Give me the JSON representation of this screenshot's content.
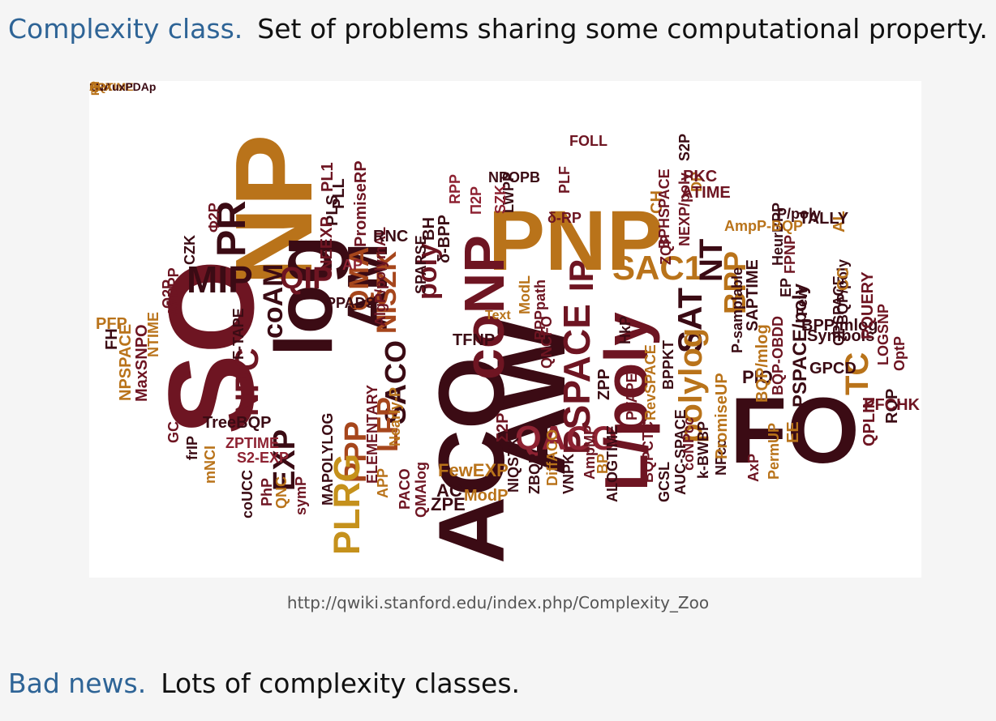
{
  "heading": {
    "term": "Complexity class.",
    "definition": "Set of problems sharing some computational property."
  },
  "word_cloud": {
    "source_url": "http://qwiki.stanford.edu/index.php/Complexity_Zoo",
    "colors": {
      "dark": "#3b0b14",
      "maroon": "#6e1522",
      "red": "#8e2232",
      "rust": "#a6461c",
      "orange": "#b9731a",
      "gold": "#c5911c"
    },
    "words": [
      {
        "t": "SO",
        "c": "maroon",
        "v": 1
      },
      {
        "t": "NP",
        "c": "orange",
        "v": 1
      },
      {
        "t": "log",
        "c": "dark",
        "v": 1
      },
      {
        "t": "PNP",
        "c": "orange",
        "v": 0
      },
      {
        "t": "AW",
        "c": "dark",
        "v": 1
      },
      {
        "t": "ACO",
        "c": "dark",
        "v": 1
      },
      {
        "t": "FO",
        "c": "dark",
        "v": 0
      },
      {
        "t": "L/poly",
        "c": "maroon",
        "v": 1
      },
      {
        "t": "coNP",
        "c": "maroon",
        "v": 1
      },
      {
        "t": "AM",
        "c": "dark",
        "v": 1
      },
      {
        "t": "MIP",
        "c": "dark",
        "v": 0
      },
      {
        "t": "PR",
        "c": "dark",
        "v": 1
      },
      {
        "t": "QIP",
        "c": "maroon",
        "v": 0
      },
      {
        "t": "coAM",
        "c": "dark",
        "v": 1
      },
      {
        "t": "QMA",
        "c": "rust",
        "v": 1
      },
      {
        "t": "NISZK",
        "c": "rust",
        "v": 1
      },
      {
        "t": "poly",
        "c": "maroon",
        "v": 1
      },
      {
        "t": "SACO",
        "c": "dark",
        "v": 1
      },
      {
        "t": "LFP",
        "c": "rust",
        "v": 1
      },
      {
        "t": "PPP",
        "c": "rust",
        "v": 1
      },
      {
        "t": "PLRG",
        "c": "gold",
        "v": 1
      },
      {
        "t": "EXP",
        "c": "dark",
        "v": 1
      },
      {
        "t": "NPC",
        "c": "maroon",
        "v": 1
      },
      {
        "t": "PSPACE",
        "c": "maroon",
        "v": 1
      },
      {
        "t": "IP",
        "c": "maroon",
        "v": 1
      },
      {
        "t": "SAC1",
        "c": "orange",
        "v": 0
      },
      {
        "t": "SAT",
        "c": "dark",
        "v": 1
      },
      {
        "t": "NT",
        "c": "dark",
        "v": 1
      },
      {
        "t": "polylog",
        "c": "orange",
        "v": 1
      },
      {
        "t": "BPP",
        "c": "orange",
        "v": 1
      },
      {
        "t": "QACO",
        "c": "red",
        "v": 0
      },
      {
        "t": "TC",
        "c": "orange",
        "v": 1
      },
      {
        "t": "PSPACE/poly",
        "c": "dark",
        "v": 1
      },
      {
        "t": "NPSPACE",
        "c": "orange",
        "v": 1
      },
      {
        "t": "MaxSNPO",
        "c": "maroon",
        "v": 1
      },
      {
        "t": "NTIME",
        "c": "orange",
        "v": 1
      },
      {
        "t": "PFP",
        "c": "orange",
        "v": 0
      },
      {
        "t": "FH",
        "c": "dark",
        "v": 1
      },
      {
        "t": "Θ2P",
        "c": "maroon",
        "v": 1
      },
      {
        "t": "AVBPP",
        "c": "maroon",
        "v": 1
      },
      {
        "t": "CZK",
        "c": "dark",
        "v": 1
      },
      {
        "t": "Φ2P",
        "c": "maroon",
        "v": 1
      },
      {
        "t": "F-TAPE",
        "c": "dark",
        "v": 1
      },
      {
        "t": "TreeBQP",
        "c": "dark",
        "v": 0
      },
      {
        "t": "GC",
        "c": "maroon",
        "v": 1
      },
      {
        "t": "frIP",
        "c": "dark",
        "v": 1
      },
      {
        "t": "mNCI",
        "c": "orange",
        "v": 1
      },
      {
        "t": "ZPTIME",
        "c": "red",
        "v": 0
      },
      {
        "t": "S2-EXP",
        "c": "red",
        "v": 0
      },
      {
        "t": "coUCC",
        "c": "dark",
        "v": 1
      },
      {
        "t": "PhP",
        "c": "maroon",
        "v": 1
      },
      {
        "t": "QNC",
        "c": "orange",
        "v": 1
      },
      {
        "t": "symP",
        "c": "maroon",
        "v": 1
      },
      {
        "t": "MAPOLYLOG",
        "c": "dark",
        "v": 1
      },
      {
        "t": "ELEMENTARY",
        "c": "maroon",
        "v": 1
      },
      {
        "t": "Nearly-P",
        "c": "orange",
        "v": 1
      },
      {
        "t": "APP",
        "c": "orange",
        "v": 1
      },
      {
        "t": "PACO",
        "c": "maroon",
        "v": 1
      },
      {
        "t": "QMAlog",
        "c": "maroon",
        "v": 1
      },
      {
        "t": "FewEXP",
        "c": "orange",
        "v": 0
      },
      {
        "t": "AC",
        "c": "dark",
        "v": 0
      },
      {
        "t": "ZPE",
        "c": "dark",
        "v": 0
      },
      {
        "t": "ModP",
        "c": "orange",
        "v": 0
      },
      {
        "t": "Σ2P",
        "c": "maroon",
        "v": 1
      },
      {
        "t": "NIQSZK",
        "c": "dark",
        "v": 1
      },
      {
        "t": "ZBQP",
        "c": "dark",
        "v": 1
      },
      {
        "t": "DiffACO",
        "c": "orange",
        "v": 1
      },
      {
        "t": "VNPK",
        "c": "dark",
        "v": 1
      },
      {
        "t": "AmpMP",
        "c": "maroon",
        "v": 1
      },
      {
        "t": "BP",
        "c": "orange",
        "v": 1
      },
      {
        "t": "ALOGTIME",
        "c": "dark",
        "v": 1
      },
      {
        "t": "ZPP",
        "c": "dark",
        "v": 1
      },
      {
        "t": "PTAPE",
        "c": "maroon",
        "v": 1
      },
      {
        "t": "HkP",
        "c": "dark",
        "v": 1
      },
      {
        "t": "TFNP",
        "c": "dark",
        "v": 0
      },
      {
        "t": "QNCFO",
        "c": "maroon",
        "v": 1
      },
      {
        "t": "ModL",
        "c": "orange",
        "v": 1
      },
      {
        "t": "BPPpath",
        "c": "maroon",
        "v": 1
      },
      {
        "t": "Text",
        "c": "orange",
        "v": 0
      },
      {
        "t": "RevSPACE",
        "c": "orange",
        "v": 1
      },
      {
        "t": "BPPKT",
        "c": "dark",
        "v": 1
      },
      {
        "t": "BQPCTC",
        "c": "maroon",
        "v": 1
      },
      {
        "t": "GCSL",
        "c": "dark",
        "v": 1
      },
      {
        "t": "AUC-SPACE",
        "c": "dark",
        "v": 1
      },
      {
        "t": "coNPcc",
        "c": "maroon",
        "v": 1
      },
      {
        "t": "k-BWBP",
        "c": "dark",
        "v": 1
      },
      {
        "t": "NPcc",
        "c": "dark",
        "v": 1
      },
      {
        "t": "PromiseUP",
        "c": "orange",
        "v": 1
      },
      {
        "t": "P-samplable",
        "c": "dark",
        "v": 1
      },
      {
        "t": "AxP",
        "c": "maroon",
        "v": 1
      },
      {
        "t": "PermUP",
        "c": "orange",
        "v": 1
      },
      {
        "t": "EE",
        "c": "orange",
        "v": 1
      },
      {
        "t": "PIO",
        "c": "dark",
        "v": 0
      },
      {
        "t": "BQP/mlog",
        "c": "orange",
        "v": 1
      },
      {
        "t": "BQP-OBDD",
        "c": "maroon",
        "v": 1
      },
      {
        "t": "EP",
        "c": "dark",
        "v": 1
      },
      {
        "t": "Few",
        "c": "dark",
        "v": 1
      },
      {
        "t": "BPP/mlog",
        "c": "dark",
        "v": 0
      },
      {
        "t": "Symbols",
        "c": "dark",
        "v": 0
      },
      {
        "t": "GPCD",
        "c": "dark",
        "v": 0
      },
      {
        "t": "QPLIN",
        "c": "maroon",
        "v": 1
      },
      {
        "t": "RQP",
        "c": "dark",
        "v": 1
      },
      {
        "t": "PFCHK",
        "c": "maroon",
        "v": 0
      },
      {
        "t": "OptP",
        "c": "maroon",
        "v": 1
      },
      {
        "t": "LOGSNP",
        "c": "maroon",
        "v": 1
      },
      {
        "t": "PQUERY",
        "c": "maroon",
        "v": 1
      },
      {
        "t": "QPSPACE",
        "c": "dark",
        "v": 1
      },
      {
        "t": "BQP/poly",
        "c": "dark",
        "v": 1
      },
      {
        "t": "AL",
        "c": "orange",
        "v": 1
      },
      {
        "t": "CC",
        "c": "orange",
        "v": 1
      },
      {
        "t": "P/poly",
        "c": "dark",
        "v": 0
      },
      {
        "t": "TALLY",
        "c": "dark",
        "v": 0
      },
      {
        "t": "FPNP",
        "c": "maroon",
        "v": 1
      },
      {
        "t": "HeurBPP",
        "c": "dark",
        "v": 1
      },
      {
        "t": "SAPTIME",
        "c": "dark",
        "v": 1
      },
      {
        "t": "AmpP-BQP",
        "c": "orange",
        "v": 0
      },
      {
        "t": "DP",
        "c": "orange",
        "v": 1
      },
      {
        "t": "PKC",
        "c": "maroon",
        "v": 0
      },
      {
        "t": "ATIME",
        "c": "maroon",
        "v": 0
      },
      {
        "t": "ZQP",
        "c": "maroon",
        "v": 1
      },
      {
        "t": "CH",
        "c": "orange",
        "v": 1
      },
      {
        "t": "BPHSPACE",
        "c": "maroon",
        "v": 1
      },
      {
        "t": "NEXP/poly",
        "c": "maroon",
        "v": 1
      },
      {
        "t": "S2P",
        "c": "dark",
        "v": 1
      },
      {
        "t": "δ-RP",
        "c": "maroon",
        "v": 0
      },
      {
        "t": "FOLL",
        "c": "maroon",
        "v": 0
      },
      {
        "t": "PLF",
        "c": "maroon",
        "v": 1
      },
      {
        "t": "LWPP",
        "c": "dark",
        "v": 1
      },
      {
        "t": "NPOPB",
        "c": "dark",
        "v": 0
      },
      {
        "t": "SZK",
        "c": "red",
        "v": 1
      },
      {
        "t": "Π2P",
        "c": "red",
        "v": 1
      },
      {
        "t": "RPP",
        "c": "red",
        "v": 1
      },
      {
        "t": "δ-BPP",
        "c": "dark",
        "v": 1
      },
      {
        "t": "BH",
        "c": "dark",
        "v": 1
      },
      {
        "t": "SPARSE",
        "c": "dark",
        "v": 1
      },
      {
        "t": "AlgP/polymAL",
        "c": "maroon",
        "v": 1
      },
      {
        "t": "PL1",
        "c": "maroon",
        "v": 1
      },
      {
        "t": "PromiseRP",
        "c": "maroon",
        "v": 1
      },
      {
        "t": "PLL",
        "c": "dark",
        "v": 1
      },
      {
        "t": "PLS",
        "c": "dark",
        "v": 1
      },
      {
        "t": "NEEXP",
        "c": "maroon",
        "v": 1
      },
      {
        "t": "RNC",
        "c": "dark",
        "v": 0
      },
      {
        "t": "AP",
        "c": "red",
        "v": 0
      },
      {
        "t": "PPADS",
        "c": "dark",
        "v": 0
      },
      {
        "t": "BQTIME",
        "c": "orange",
        "v": 0
      },
      {
        "t": "1NAuxPDAp",
        "c": "dark",
        "v": 0
      },
      {
        "t": "APX",
        "c": "orange",
        "v": 0
      },
      {
        "t": "GI",
        "c": "orange",
        "v": 1
      },
      {
        "t": "FP",
        "c": "orange",
        "v": 1
      }
    ]
  },
  "footer": {
    "term": "Bad news.",
    "statement": "Lots of complexity classes."
  }
}
